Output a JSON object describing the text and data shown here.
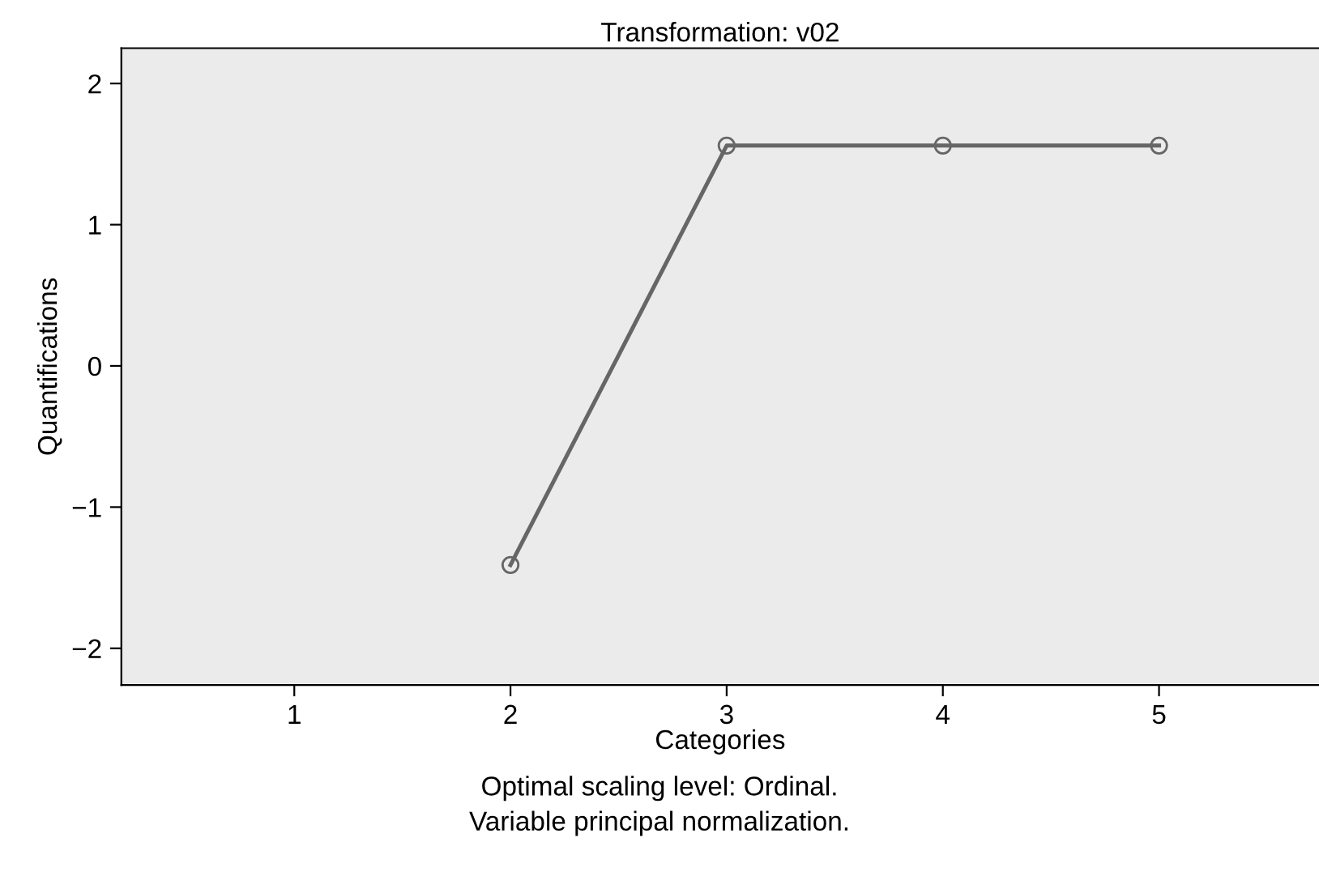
{
  "chart_data": {
    "type": "line",
    "title": "Transformation: v02",
    "xlabel": "Categories",
    "ylabel": "Quantifications",
    "x": [
      2,
      3,
      4,
      5
    ],
    "series": [
      {
        "color": "#666666",
        "values": [
          -1.41,
          1.56,
          1.56,
          1.56
        ]
      }
    ],
    "xlim": [
      0.2,
      5.74
    ],
    "xticks": [
      1,
      2,
      3,
      4,
      5
    ],
    "ylim": [
      -2.26,
      2.25
    ],
    "yticks": [
      2,
      1,
      0,
      {
        "value": -1,
        "label": "−1"
      },
      {
        "value": -2,
        "label": "−2"
      }
    ],
    "marker": "circle",
    "line_style": "solid",
    "grid": false,
    "legend": false,
    "annotations": [
      "Optimal scaling level: Ordinal.",
      "Variable principal normalization."
    ]
  }
}
